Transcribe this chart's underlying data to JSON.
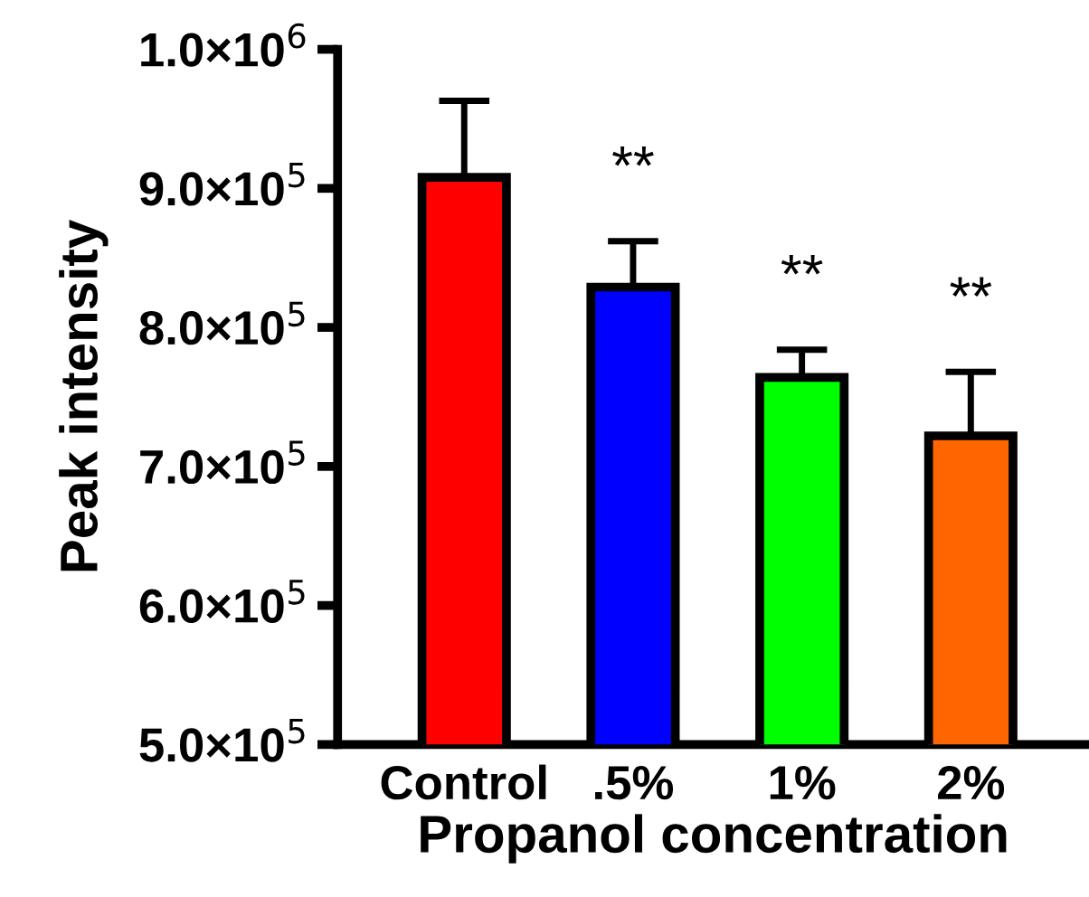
{
  "chart_data": {
    "type": "bar",
    "xlabel": "Propanol concentration",
    "ylabel": "Peak intensity",
    "categories": [
      "Control",
      ".5%",
      "1%",
      "2%"
    ],
    "values": [
      908000,
      829000,
      764000,
      722000
    ],
    "colors": [
      "#ff0000",
      "#0000ff",
      "#00ff00",
      "#ff6600"
    ],
    "errors": [
      [
        908000,
        963000
      ],
      [
        829000,
        862000
      ],
      [
        764000,
        784000
      ],
      [
        722000,
        768000
      ]
    ],
    "ylim": [
      500000,
      1000000
    ],
    "yticks": [
      {
        "value": 500000,
        "label": "5.0×10$^{5}$"
      },
      {
        "value": 600000,
        "label": "6.0×10$^{5}$"
      },
      {
        "value": 700000,
        "label": "7.0×10$^{5}$"
      },
      {
        "value": 800000,
        "label": "8.0×10$^{5}$"
      },
      {
        "value": 900000,
        "label": "9.0×10$^{5}$"
      },
      {
        "value": 1000000,
        "label": "1.0×10$^{6}$"
      }
    ],
    "annotations": [
      "**",
      "**",
      "**"
    ],
    "grid": false,
    "legend": false
  }
}
